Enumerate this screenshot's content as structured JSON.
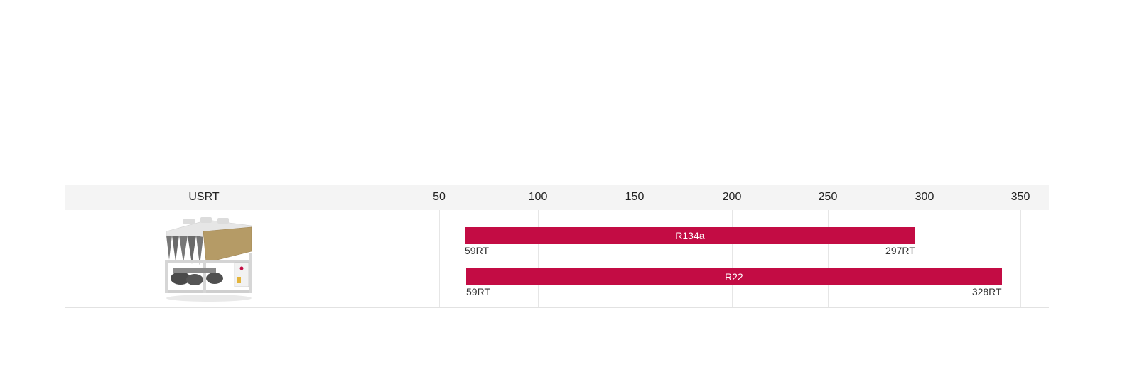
{
  "chart_data": {
    "type": "bar",
    "orientation": "horizontal-range",
    "xlabel": "USRT",
    "xticks": [
      50,
      100,
      150,
      200,
      250,
      300,
      350
    ],
    "xlim": [
      50,
      350
    ],
    "grid": true,
    "series": [
      {
        "name": "R134a",
        "min": 59,
        "max": 297,
        "min_label": "59RT",
        "max_label": "297RT"
      },
      {
        "name": "R22",
        "min": 59,
        "max": 328,
        "min_label": "59RT",
        "max_label": "328RT"
      }
    ],
    "bar_color": "#c30c44"
  },
  "product": {
    "icon": "chiller-unit-icon"
  }
}
